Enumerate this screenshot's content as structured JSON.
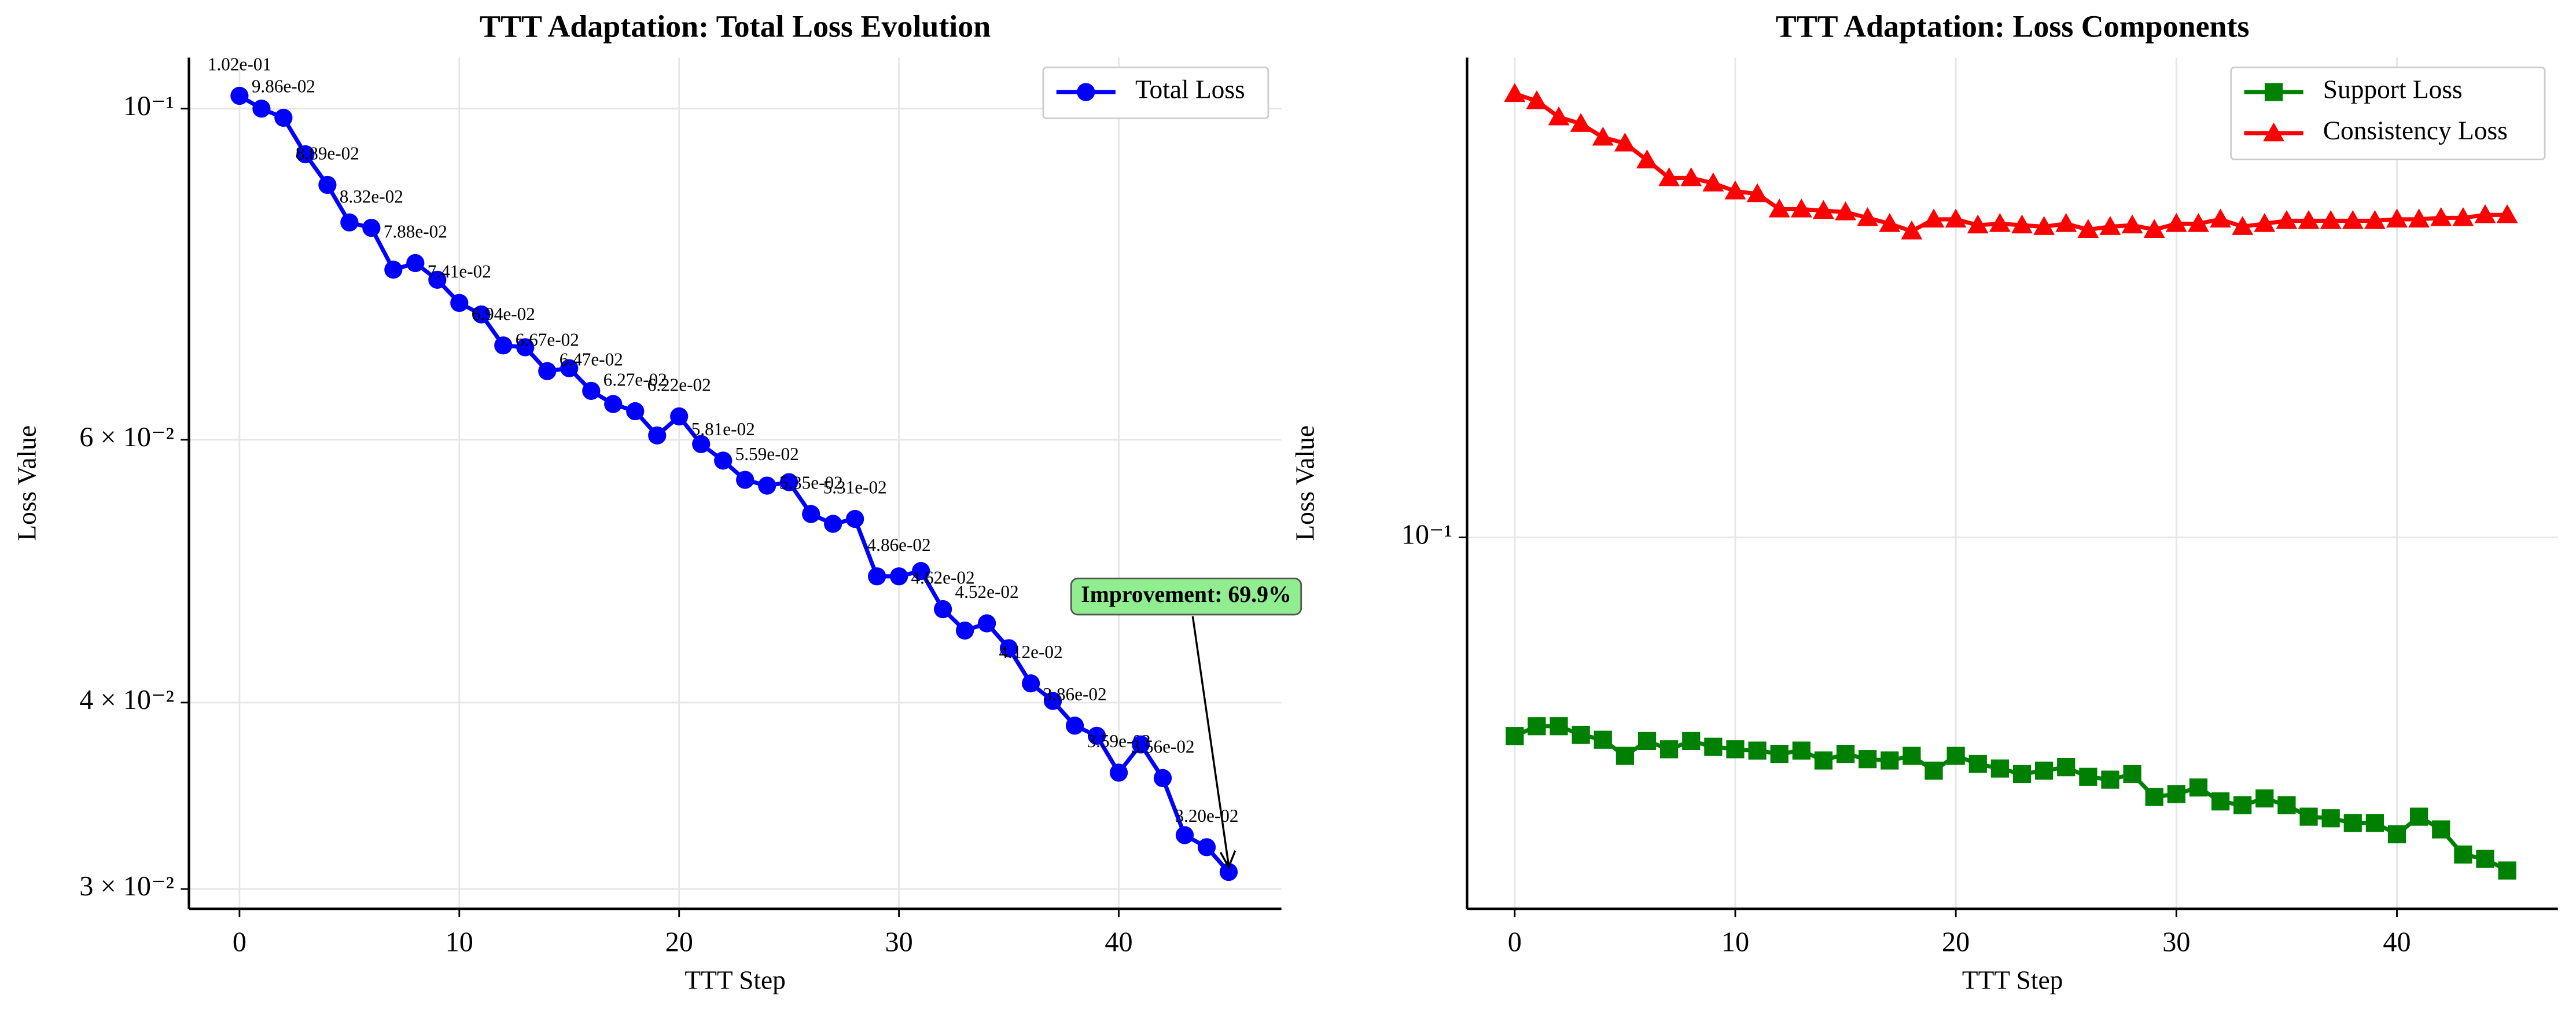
{
  "chart_data": [
    {
      "type": "line",
      "title": "TTT Adaptation: Total Loss Evolution",
      "xlabel": "TTT Step",
      "ylabel": "Loss Value",
      "x": [
        0,
        1,
        2,
        3,
        4,
        5,
        6,
        7,
        8,
        9,
        10,
        11,
        12,
        13,
        14,
        15,
        16,
        17,
        18,
        19,
        20,
        21,
        22,
        23,
        24,
        25,
        26,
        27,
        28,
        29,
        30,
        31,
        32,
        33,
        34,
        35,
        36,
        37,
        38,
        39,
        40,
        41,
        42,
        43,
        44,
        45
      ],
      "series": [
        {
          "name": "Total Loss",
          "color": "#0000ff",
          "marker": "circle",
          "values": [
            0.102,
            0.1,
            0.0986,
            0.0932,
            0.0889,
            0.0839,
            0.0832,
            0.078,
            0.0788,
            0.0768,
            0.0741,
            0.0728,
            0.0694,
            0.0692,
            0.0667,
            0.067,
            0.0647,
            0.0634,
            0.0627,
            0.0604,
            0.0622,
            0.0596,
            0.0581,
            0.0564,
            0.0559,
            0.0562,
            0.0535,
            0.0527,
            0.0531,
            0.0486,
            0.0486,
            0.049,
            0.0462,
            0.0447,
            0.0452,
            0.0435,
            0.0412,
            0.0401,
            0.0386,
            0.038,
            0.0359,
            0.0375,
            0.0356,
            0.0326,
            0.032,
            0.0308
          ],
          "value_labels": [
            "1.02e-01",
            null,
            "9.86e-02",
            null,
            "8.89e-02",
            null,
            "8.32e-02",
            null,
            "7.88e-02",
            null,
            "7.41e-02",
            null,
            "6.94e-02",
            null,
            "6.67e-02",
            null,
            "6.47e-02",
            null,
            "6.27e-02",
            null,
            "6.22e-02",
            null,
            "5.81e-02",
            null,
            "5.59e-02",
            null,
            "5.35e-02",
            null,
            "5.31e-02",
            null,
            "4.86e-02",
            null,
            "4.62e-02",
            null,
            "4.52e-02",
            null,
            "4.12e-02",
            null,
            "3.86e-02",
            null,
            "3.59e-02",
            null,
            "3.56e-02",
            null,
            "3.20e-02",
            null
          ]
        }
      ],
      "annotation": {
        "text": "Improvement: 69.9%"
      },
      "yscale": "log",
      "xlim": [
        -2.3,
        47.4
      ],
      "ylim": [
        0.0291,
        0.1082
      ],
      "xticks": [
        0,
        10,
        20,
        30,
        40
      ],
      "yticks": [
        {
          "value": 0.1,
          "label": "10⁻¹"
        },
        {
          "value": 0.06,
          "label": "6 × 10⁻²"
        },
        {
          "value": 0.04,
          "label": "4 × 10⁻²"
        },
        {
          "value": 0.03,
          "label": "3 × 10⁻²"
        }
      ],
      "grid": true,
      "legend": "upper right"
    },
    {
      "type": "line",
      "title": "TTT Adaptation: Loss Components",
      "xlabel": "TTT Step",
      "ylabel": "Loss Value",
      "x": [
        0,
        1,
        2,
        3,
        4,
        5,
        6,
        7,
        8,
        9,
        10,
        11,
        12,
        13,
        14,
        15,
        16,
        17,
        18,
        19,
        20,
        21,
        22,
        23,
        24,
        25,
        26,
        27,
        28,
        29,
        30,
        31,
        32,
        33,
        34,
        35,
        36,
        37,
        38,
        39,
        40,
        41,
        42,
        43,
        44,
        45
      ],
      "series": [
        {
          "name": "Support Loss",
          "color": "#008000",
          "marker": "square",
          "values": [
            0.0573,
            0.0589,
            0.0589,
            0.0575,
            0.0567,
            0.0542,
            0.0565,
            0.0552,
            0.0565,
            0.0556,
            0.0552,
            0.055,
            0.0545,
            0.055,
            0.0535,
            0.0545,
            0.0537,
            0.0535,
            0.0542,
            0.052,
            0.0542,
            0.053,
            0.0523,
            0.0515,
            0.052,
            0.0525,
            0.0511,
            0.0507,
            0.0515,
            0.0483,
            0.0487,
            0.0496,
            0.0477,
            0.0472,
            0.0481,
            0.0472,
            0.0457,
            0.0455,
            0.0449,
            0.0449,
            0.0435,
            0.0457,
            0.0441,
            0.0411,
            0.0406,
            0.0393
          ]
        },
        {
          "name": "Consistency Loss",
          "color": "#ff0000",
          "marker": "triangle",
          "values": [
            0.347,
            0.34,
            0.325,
            0.319,
            0.307,
            0.302,
            0.288,
            0.274,
            0.274,
            0.27,
            0.264,
            0.262,
            0.251,
            0.251,
            0.25,
            0.249,
            0.245,
            0.241,
            0.236,
            0.244,
            0.244,
            0.24,
            0.241,
            0.24,
            0.239,
            0.241,
            0.237,
            0.239,
            0.24,
            0.237,
            0.241,
            0.241,
            0.244,
            0.239,
            0.241,
            0.243,
            0.243,
            0.243,
            0.243,
            0.243,
            0.244,
            0.244,
            0.245,
            0.245,
            0.247,
            0.247
          ]
        }
      ],
      "yscale": "log",
      "xlim": [
        -2.16,
        47.3
      ],
      "ylim": [
        0.0353,
        0.384
      ],
      "xticks": [
        0,
        10,
        20,
        30,
        40
      ],
      "yticks": [
        {
          "value": 0.1,
          "label": "10⁻¹"
        }
      ],
      "grid": true,
      "legend": "upper right"
    }
  ]
}
